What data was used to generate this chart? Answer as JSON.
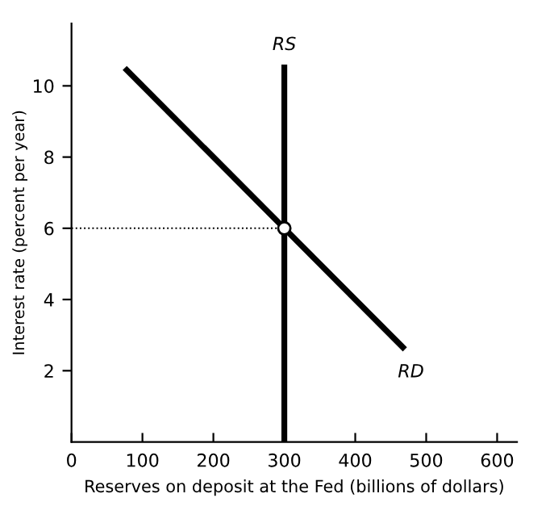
{
  "chart_data": {
    "type": "line",
    "xlabel": "Reserves on deposit at the Fed (billions of dollars)",
    "ylabel": "Interest rate (percent per year)",
    "xlim": [
      0,
      628
    ],
    "ylim": [
      0,
      11.75
    ],
    "xticks": [
      0,
      100,
      200,
      300,
      400,
      500,
      600
    ],
    "yticks": [
      2,
      4,
      6,
      8,
      10
    ],
    "grid": false,
    "legend": false,
    "series": [
      {
        "name": "RS",
        "color": "#000000",
        "x": [
          300,
          300
        ],
        "values": [
          0,
          10.6
        ]
      },
      {
        "name": "RD",
        "color": "#000000",
        "x": [
          75,
          470
        ],
        "values": [
          10.5,
          2.6
        ]
      },
      {
        "type": "line",
        "line_style": "dotted",
        "color": "#000000",
        "x": [
          0,
          300
        ],
        "values": [
          6,
          6
        ]
      },
      {
        "type": "scatter",
        "marker": "circle",
        "color": "#000000",
        "x": [
          300
        ],
        "values": [
          6
        ]
      }
    ]
  }
}
